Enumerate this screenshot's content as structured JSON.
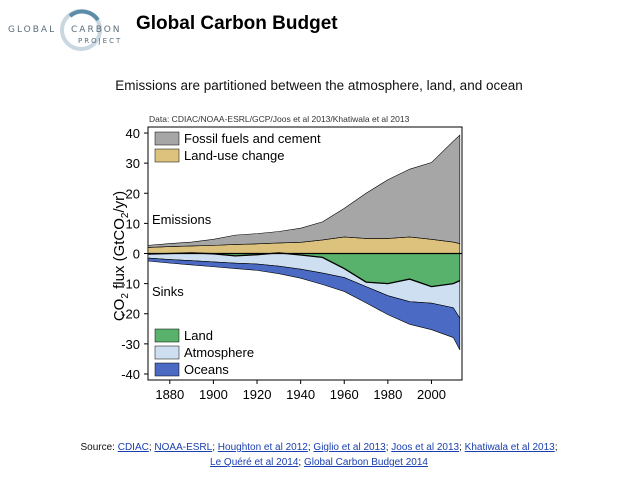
{
  "header": {
    "logo_word1": "GLOBAL",
    "logo_word2": "CARBON",
    "logo_word3": "PROJECT",
    "title": "Global Carbon Budget"
  },
  "subtitle": "Emissions are partitioned between the atmosphere, land, and ocean",
  "colors": {
    "fossil": "#a6a6a6",
    "landuse": "#dcc27d",
    "land": "#58b26b",
    "atmosphere": "#cddff0",
    "oceans": "#4a6ac4",
    "link": "#1a3fb0"
  },
  "chart_data": {
    "type": "area",
    "data_source": "Data: CDIAC/NOAA-ESRL/GCP/Joos et al 2013/Khatiwala et al 2013",
    "ylabel_main": "CO",
    "ylabel_sub": "2",
    "ylabel_rest": " flux (GtCO",
    "ylabel_sub2": "2",
    "ylabel_end": "/yr)",
    "xlim": [
      1870,
      2014
    ],
    "ylim": [
      -42,
      42
    ],
    "xticks": [
      "1880",
      "1900",
      "1920",
      "1940",
      "1960",
      "1980",
      "2000"
    ],
    "yticks": [
      "40",
      "30",
      "20",
      "10",
      "0",
      "-10",
      "-20",
      "-30",
      "-40"
    ],
    "annotations": {
      "emissions": "Emissions",
      "sinks": "Sinks"
    },
    "legend_top": [
      "Fossil fuels and cement",
      "Land-use change"
    ],
    "legend_bottom": [
      "Land",
      "Atmosphere",
      "Oceans"
    ],
    "x": [
      1870,
      1880,
      1890,
      1900,
      1910,
      1920,
      1930,
      1940,
      1950,
      1960,
      1970,
      1980,
      1990,
      2000,
      2010,
      2013
    ],
    "series": [
      {
        "name": "Fossil fuels and cement",
        "values": [
          0.7,
          1.0,
          1.3,
          2.0,
          3.1,
          3.4,
          3.8,
          4.7,
          6.0,
          9.5,
          15.0,
          19.5,
          22.5,
          25.5,
          33.5,
          36.0
        ]
      },
      {
        "name": "Land-use change",
        "values": [
          2.0,
          2.3,
          2.5,
          2.7,
          3.0,
          3.2,
          3.5,
          3.7,
          4.5,
          5.5,
          5.0,
          5.0,
          5.5,
          4.7,
          3.8,
          3.3
        ]
      },
      {
        "name": "Atmosphere",
        "values": [
          -1.5,
          -2.0,
          -2.4,
          -2.8,
          -3.2,
          -3.5,
          -4.2,
          -5.2,
          -6.5,
          -8.0,
          -11.0,
          -14.0,
          -16.0,
          -16.5,
          -18.0,
          -21.5
        ]
      },
      {
        "name": "Oceans",
        "values": [
          -1.0,
          -1.2,
          -1.4,
          -1.6,
          -1.8,
          -2.1,
          -2.5,
          -3.0,
          -3.8,
          -4.6,
          -5.4,
          -6.3,
          -7.5,
          -8.8,
          -9.9,
          -10.5
        ]
      },
      {
        "name": "Land",
        "values": [
          -0.2,
          0.0,
          0.2,
          -0.1,
          -0.8,
          -0.4,
          0.2,
          -0.5,
          -1.3,
          -5.0,
          -9.5,
          -10.0,
          -8.5,
          -11.0,
          -10.0,
          -9.0
        ]
      }
    ]
  },
  "footer": {
    "source_prefix": "Source: ",
    "links": [
      "CDIAC",
      "NOAA-ESRL",
      "Houghton et al 2012",
      "Giglio et al 2013",
      "Joos et al 2013",
      "Khatiwala et al 2013"
    ],
    "links_line2": [
      "Le Quéré et al 2014",
      "Global Carbon Budget 2014"
    ]
  }
}
